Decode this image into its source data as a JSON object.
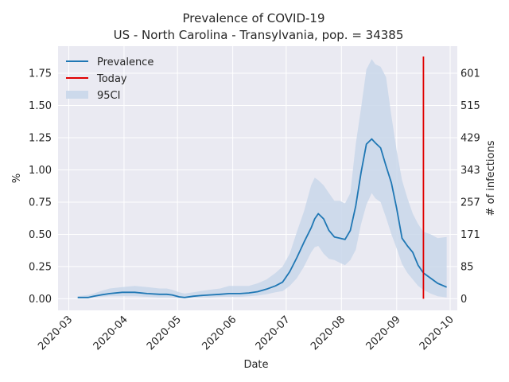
{
  "chart_data": {
    "type": "line",
    "title": "Prevalence of COVID-19",
    "subtitle": "US - North Carolina - Transylvania, pop. = 34385",
    "xlabel": "Date",
    "ylabel": "%",
    "y2label": "# of infections",
    "xlim": [
      "2020-02-24",
      "2020-10-05"
    ],
    "ylim": [
      -0.09,
      1.96
    ],
    "x_ticks": [
      "2020-03",
      "2020-04",
      "2020-05",
      "2020-06",
      "2020-07",
      "2020-08",
      "2020-09",
      "2020-10"
    ],
    "y_ticks": [
      "0.00",
      "0.25",
      "0.50",
      "0.75",
      "1.00",
      "1.25",
      "1.50",
      "1.75"
    ],
    "y2_ticks": [
      "0",
      "85",
      "171",
      "257",
      "343",
      "429",
      "515",
      "601"
    ],
    "legend": {
      "position": "top-left",
      "entries": [
        "Prevalence",
        "Today",
        "95CI"
      ]
    },
    "grid": true,
    "colors": {
      "prevalence": "#1f77b4",
      "today": "#e00000",
      "ci": "#c9d7ea",
      "background": "#eaeaf2",
      "grid": "#ffffff"
    },
    "today": {
      "date": "2020-09-16",
      "ymin": 0.0,
      "ymax": 1.88
    },
    "series": [
      {
        "name": "Prevalence",
        "x": [
          "2020-03-06",
          "2020-03-12",
          "2020-03-15",
          "2020-03-19",
          "2020-03-24",
          "2020-03-31",
          "2020-04-07",
          "2020-04-14",
          "2020-04-21",
          "2020-04-25",
          "2020-04-28",
          "2020-05-02",
          "2020-05-05",
          "2020-05-10",
          "2020-05-14",
          "2020-05-19",
          "2020-05-25",
          "2020-05-30",
          "2020-06-05",
          "2020-06-10",
          "2020-06-15",
          "2020-06-20",
          "2020-06-25",
          "2020-06-29",
          "2020-07-03",
          "2020-07-07",
          "2020-07-11",
          "2020-07-15",
          "2020-07-17",
          "2020-07-19",
          "2020-07-22",
          "2020-07-25",
          "2020-07-28",
          "2020-07-31",
          "2020-08-03",
          "2020-08-06",
          "2020-08-09",
          "2020-08-12",
          "2020-08-15",
          "2020-08-18",
          "2020-08-20",
          "2020-08-23",
          "2020-08-26",
          "2020-08-29",
          "2020-09-01",
          "2020-09-04",
          "2020-09-07",
          "2020-09-10",
          "2020-09-13",
          "2020-09-16",
          "2020-09-20",
          "2020-09-24",
          "2020-09-29"
        ],
        "y": [
          0.01,
          0.01,
          0.02,
          0.03,
          0.04,
          0.05,
          0.05,
          0.04,
          0.035,
          0.035,
          0.03,
          0.015,
          0.01,
          0.02,
          0.025,
          0.03,
          0.035,
          0.04,
          0.04,
          0.045,
          0.055,
          0.075,
          0.1,
          0.13,
          0.21,
          0.32,
          0.44,
          0.55,
          0.62,
          0.66,
          0.62,
          0.53,
          0.48,
          0.47,
          0.46,
          0.53,
          0.72,
          0.98,
          1.2,
          1.24,
          1.21,
          1.17,
          1.03,
          0.9,
          0.7,
          0.47,
          0.41,
          0.36,
          0.26,
          0.2,
          0.16,
          0.12,
          0.09
        ]
      }
    ],
    "ci": {
      "name": "95CI",
      "x": [
        "2020-03-06",
        "2020-03-12",
        "2020-03-15",
        "2020-03-19",
        "2020-03-24",
        "2020-03-31",
        "2020-04-07",
        "2020-04-14",
        "2020-04-21",
        "2020-04-25",
        "2020-04-28",
        "2020-05-02",
        "2020-05-05",
        "2020-05-10",
        "2020-05-14",
        "2020-05-19",
        "2020-05-25",
        "2020-05-30",
        "2020-06-05",
        "2020-06-10",
        "2020-06-15",
        "2020-06-20",
        "2020-06-25",
        "2020-06-29",
        "2020-07-03",
        "2020-07-07",
        "2020-07-11",
        "2020-07-15",
        "2020-07-17",
        "2020-07-19",
        "2020-07-22",
        "2020-07-25",
        "2020-07-28",
        "2020-07-31",
        "2020-08-03",
        "2020-08-06",
        "2020-08-09",
        "2020-08-12",
        "2020-08-15",
        "2020-08-18",
        "2020-08-20",
        "2020-08-23",
        "2020-08-26",
        "2020-08-29",
        "2020-09-01",
        "2020-09-04",
        "2020-09-07",
        "2020-09-10",
        "2020-09-13",
        "2020-09-16",
        "2020-09-20",
        "2020-09-24",
        "2020-09-29"
      ],
      "lower": [
        0.005,
        0.005,
        0.01,
        0.015,
        0.02,
        0.02,
        0.02,
        0.015,
        0.01,
        0.01,
        0.01,
        0.005,
        0.005,
        0.01,
        0.01,
        0.01,
        0.015,
        0.015,
        0.015,
        0.02,
        0.025,
        0.035,
        0.05,
        0.06,
        0.1,
        0.16,
        0.25,
        0.36,
        0.4,
        0.41,
        0.35,
        0.31,
        0.3,
        0.28,
        0.26,
        0.3,
        0.38,
        0.58,
        0.73,
        0.82,
        0.78,
        0.75,
        0.63,
        0.5,
        0.39,
        0.27,
        0.2,
        0.15,
        0.1,
        0.07,
        0.04,
        0.02,
        0.01
      ],
      "upper": [
        0.02,
        0.03,
        0.04,
        0.06,
        0.08,
        0.09,
        0.1,
        0.09,
        0.08,
        0.08,
        0.07,
        0.05,
        0.04,
        0.05,
        0.06,
        0.07,
        0.08,
        0.1,
        0.1,
        0.1,
        0.12,
        0.15,
        0.2,
        0.25,
        0.35,
        0.52,
        0.68,
        0.88,
        0.94,
        0.92,
        0.88,
        0.82,
        0.76,
        0.76,
        0.74,
        0.82,
        1.2,
        1.48,
        1.78,
        1.86,
        1.82,
        1.8,
        1.72,
        1.42,
        1.15,
        0.92,
        0.78,
        0.66,
        0.58,
        0.52,
        0.5,
        0.47,
        0.48
      ]
    }
  }
}
